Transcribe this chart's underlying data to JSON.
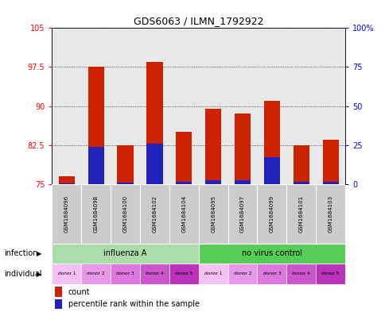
{
  "title": "GDS6063 / ILMN_1792922",
  "samples": [
    "GSM1684096",
    "GSM1684098",
    "GSM1684100",
    "GSM1684102",
    "GSM1684104",
    "GSM1684095",
    "GSM1684097",
    "GSM1684099",
    "GSM1684101",
    "GSM1684103"
  ],
  "red_values": [
    76.5,
    97.5,
    82.5,
    98.5,
    85.0,
    89.5,
    88.5,
    91.0,
    82.5,
    83.5
  ],
  "blue_pct": [
    0.5,
    24.0,
    1.0,
    26.0,
    1.5,
    2.5,
    2.5,
    17.0,
    1.5,
    1.5
  ],
  "ylim_left": [
    75,
    105
  ],
  "yticks_left": [
    75,
    82.5,
    90,
    97.5,
    105
  ],
  "ytick_labels_left": [
    "75",
    "82.5",
    "90",
    "97.5",
    "105"
  ],
  "yticks_right": [
    0,
    25,
    50,
    75,
    100
  ],
  "ytick_labels_right": [
    "0",
    "25",
    "50",
    "75",
    "100%"
  ],
  "infection_groups": [
    {
      "label": "influenza A",
      "start": 0,
      "end": 5,
      "color": "#aaddaa"
    },
    {
      "label": "no virus control",
      "start": 5,
      "end": 10,
      "color": "#55cc55"
    }
  ],
  "individual_labels": [
    "donor 1",
    "donor 2",
    "donor 3",
    "donor 4",
    "donor 5",
    "donor 1",
    "donor 2",
    "donor 3",
    "donor 4",
    "donor 5"
  ],
  "ind_colors": [
    "#f5c0f5",
    "#e898e8",
    "#dd77dd",
    "#cc55cc",
    "#bb33bb",
    "#f5c0f5",
    "#e898e8",
    "#dd77dd",
    "#cc55cc",
    "#bb33bb"
  ],
  "bar_color_red": "#cc2200",
  "bar_color_blue": "#2222bb",
  "bar_width": 0.55,
  "legend_count_label": "count",
  "legend_percentile_label": "percentile rank within the sample",
  "infection_row_label": "infection",
  "individual_row_label": "individual",
  "bg_color": "#ffffff",
  "plot_bg": "#e8e8e8",
  "sample_box_color": "#cccccc"
}
